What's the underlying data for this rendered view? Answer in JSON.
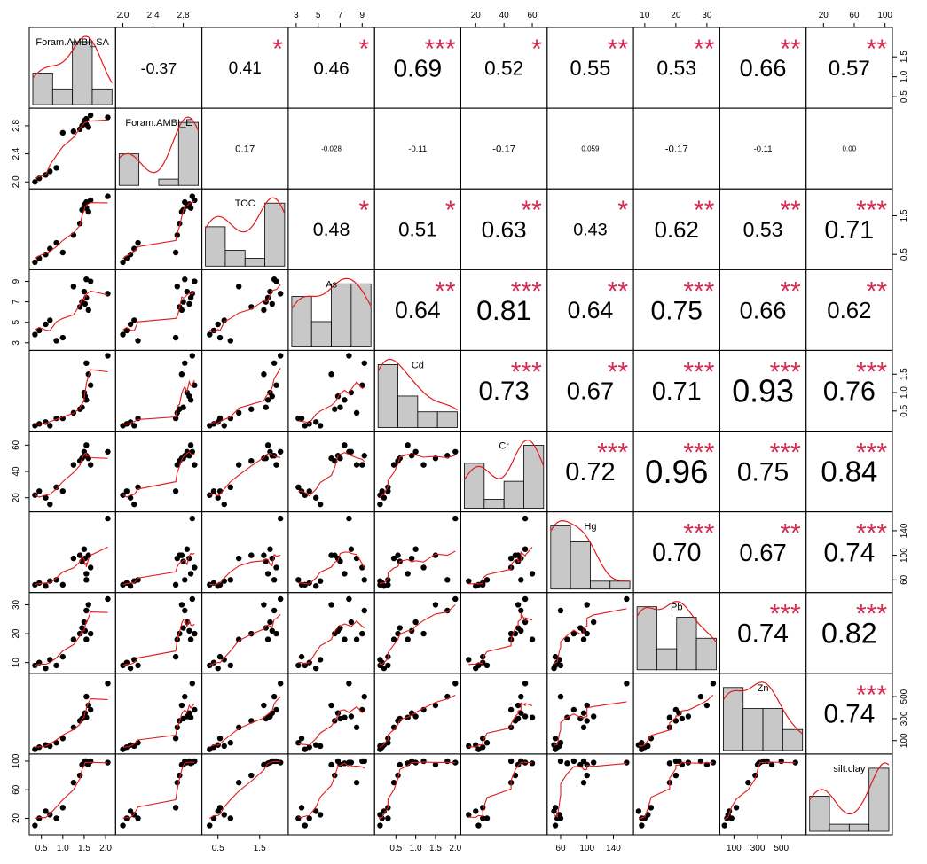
{
  "chart_data": {
    "type": "scatter",
    "title": "",
    "variables": [
      "Foram.AMBI_SA",
      "Foram.AMBI_E",
      "TOC",
      "As",
      "Cd",
      "Cr",
      "Hg",
      "Pb",
      "Zn",
      "silt.clay"
    ],
    "variable_labels": [
      "Foram.AMBI_SA",
      "Foram.AMBI_E",
      "TOC",
      "As",
      "Cd",
      "Cr",
      "Hg",
      "Pb",
      "Zn",
      "silt.clay"
    ],
    "ranges": [
      [
        0.3,
        2.15
      ],
      [
        1.95,
        3.0
      ],
      [
        0.2,
        2.1
      ],
      [
        2.6,
        9.8
      ],
      [
        0.05,
        2.05
      ],
      [
        12,
        68
      ],
      [
        45,
        165
      ],
      [
        7.5,
        33
      ],
      [
        10,
        680
      ],
      [
        2,
        105
      ]
    ],
    "tick_labels": {
      "top": [
        {
          "var": 1,
          "labels": [
            "2.0",
            "2.4",
            "2.8"
          ],
          "values": [
            2.0,
            2.4,
            2.8
          ]
        },
        {
          "var": 3,
          "labels": [
            "3",
            "5",
            "7",
            "9"
          ],
          "values": [
            3,
            5,
            7,
            9
          ]
        },
        {
          "var": 5,
          "labels": [
            "20",
            "40",
            "60"
          ],
          "values": [
            20,
            40,
            60
          ]
        },
        {
          "var": 7,
          "labels": [
            "10",
            "20",
            "30"
          ],
          "values": [
            10,
            20,
            30
          ]
        },
        {
          "var": 9,
          "labels": [
            "20",
            "60",
            "100"
          ],
          "values": [
            20,
            60,
            100
          ]
        }
      ],
      "bottom": [
        {
          "var": 0,
          "labels": [
            "0.5",
            "1.0",
            "1.5",
            "2.0"
          ],
          "values": [
            0.5,
            1.0,
            1.5,
            2.0
          ]
        },
        {
          "var": 2,
          "labels": [
            "0.5",
            "1.5"
          ],
          "values": [
            0.5,
            1.5
          ]
        },
        {
          "var": 4,
          "labels": [
            "0.5",
            "1.0",
            "1.5",
            "2.0"
          ],
          "values": [
            0.5,
            1.0,
            1.5,
            2.0
          ]
        },
        {
          "var": 6,
          "labels": [
            "60",
            "100",
            "140"
          ],
          "values": [
            60,
            100,
            140
          ]
        },
        {
          "var": 8,
          "labels": [
            "100",
            "300",
            "500"
          ],
          "values": [
            100,
            300,
            500
          ]
        }
      ],
      "left": [
        {
          "var": 1,
          "labels": [
            "2.0",
            "2.4",
            "2.8"
          ],
          "values": [
            2.0,
            2.4,
            2.8
          ]
        },
        {
          "var": 3,
          "labels": [
            "3",
            "5",
            "7",
            "9"
          ],
          "values": [
            3,
            5,
            7,
            9
          ]
        },
        {
          "var": 5,
          "labels": [
            "20",
            "40",
            "60"
          ],
          "values": [
            20,
            40,
            60
          ]
        },
        {
          "var": 7,
          "labels": [
            "10",
            "20",
            "30"
          ],
          "values": [
            10,
            20,
            30
          ]
        },
        {
          "var": 9,
          "labels": [
            "20",
            "60",
            "100"
          ],
          "values": [
            20,
            60,
            100
          ]
        }
      ],
      "right": [
        {
          "var": 0,
          "labels": [
            "0.5",
            "1.0",
            "1.5"
          ],
          "values": [
            0.5,
            1.0,
            1.5
          ]
        },
        {
          "var": 2,
          "labels": [
            "0.5",
            "1.5"
          ],
          "values": [
            0.5,
            1.5
          ]
        },
        {
          "var": 4,
          "labels": [
            "0.5",
            "1.0",
            "1.5"
          ],
          "values": [
            0.5,
            1.0,
            1.5
          ]
        },
        {
          "var": 6,
          "labels": [
            "60",
            "100",
            "140"
          ],
          "values": [
            60,
            100,
            140
          ]
        },
        {
          "var": 8,
          "labels": [
            "100",
            "300",
            "500"
          ],
          "values": [
            100,
            300,
            500
          ]
        }
      ]
    },
    "correlations": [
      {
        "row": 0,
        "col": 1,
        "r": "-0.37",
        "stars": ""
      },
      {
        "row": 0,
        "col": 2,
        "r": "0.41",
        "stars": "*"
      },
      {
        "row": 0,
        "col": 3,
        "r": "0.46",
        "stars": "*"
      },
      {
        "row": 0,
        "col": 4,
        "r": "0.69",
        "stars": "***"
      },
      {
        "row": 0,
        "col": 5,
        "r": "0.52",
        "stars": "*"
      },
      {
        "row": 0,
        "col": 6,
        "r": "0.55",
        "stars": "**"
      },
      {
        "row": 0,
        "col": 7,
        "r": "0.53",
        "stars": "**"
      },
      {
        "row": 0,
        "col": 8,
        "r": "0.66",
        "stars": "**"
      },
      {
        "row": 0,
        "col": 9,
        "r": "0.57",
        "stars": "**"
      },
      {
        "row": 1,
        "col": 2,
        "r": "0.17",
        "stars": ""
      },
      {
        "row": 1,
        "col": 3,
        "r": "-0.028",
        "stars": ""
      },
      {
        "row": 1,
        "col": 4,
        "r": "-0.11",
        "stars": ""
      },
      {
        "row": 1,
        "col": 5,
        "r": "-0.17",
        "stars": ""
      },
      {
        "row": 1,
        "col": 6,
        "r": "0.059",
        "stars": ""
      },
      {
        "row": 1,
        "col": 7,
        "r": "-0.17",
        "stars": ""
      },
      {
        "row": 1,
        "col": 8,
        "r": "-0.11",
        "stars": ""
      },
      {
        "row": 1,
        "col": 9,
        "r": "0.00",
        "stars": ""
      },
      {
        "row": 2,
        "col": 3,
        "r": "0.48",
        "stars": "*"
      },
      {
        "row": 2,
        "col": 4,
        "r": "0.51",
        "stars": "*"
      },
      {
        "row": 2,
        "col": 5,
        "r": "0.63",
        "stars": "**"
      },
      {
        "row": 2,
        "col": 6,
        "r": "0.43",
        "stars": "*"
      },
      {
        "row": 2,
        "col": 7,
        "r": "0.62",
        "stars": "**"
      },
      {
        "row": 2,
        "col": 8,
        "r": "0.53",
        "stars": "**"
      },
      {
        "row": 2,
        "col": 9,
        "r": "0.71",
        "stars": "***"
      },
      {
        "row": 3,
        "col": 4,
        "r": "0.64",
        "stars": "**"
      },
      {
        "row": 3,
        "col": 5,
        "r": "0.81",
        "stars": "***"
      },
      {
        "row": 3,
        "col": 6,
        "r": "0.64",
        "stars": "**"
      },
      {
        "row": 3,
        "col": 7,
        "r": "0.75",
        "stars": "***"
      },
      {
        "row": 3,
        "col": 8,
        "r": "0.66",
        "stars": "**"
      },
      {
        "row": 3,
        "col": 9,
        "r": "0.62",
        "stars": "**"
      },
      {
        "row": 4,
        "col": 5,
        "r": "0.73",
        "stars": "***"
      },
      {
        "row": 4,
        "col": 6,
        "r": "0.67",
        "stars": "**"
      },
      {
        "row": 4,
        "col": 7,
        "r": "0.71",
        "stars": "***"
      },
      {
        "row": 4,
        "col": 8,
        "r": "0.93",
        "stars": "***"
      },
      {
        "row": 4,
        "col": 9,
        "r": "0.76",
        "stars": "***"
      },
      {
        "row": 5,
        "col": 6,
        "r": "0.72",
        "stars": "***"
      },
      {
        "row": 5,
        "col": 7,
        "r": "0.96",
        "stars": "***"
      },
      {
        "row": 5,
        "col": 8,
        "r": "0.75",
        "stars": "***"
      },
      {
        "row": 5,
        "col": 9,
        "r": "0.84",
        "stars": "***"
      },
      {
        "row": 6,
        "col": 7,
        "r": "0.70",
        "stars": "***"
      },
      {
        "row": 6,
        "col": 8,
        "r": "0.67",
        "stars": "**"
      },
      {
        "row": 6,
        "col": 9,
        "r": "0.74",
        "stars": "***"
      },
      {
        "row": 7,
        "col": 8,
        "r": "0.74",
        "stars": "***"
      },
      {
        "row": 7,
        "col": 9,
        "r": "0.82",
        "stars": "***"
      },
      {
        "row": 8,
        "col": 9,
        "r": "0.74",
        "stars": "***"
      }
    ],
    "samples": [
      [
        0.35,
        2.0,
        0.3,
        3.8,
        0.1,
        22,
        52,
        9,
        20,
        10
      ],
      [
        0.45,
        2.05,
        0.4,
        4.2,
        0.15,
        25,
        55,
        10,
        40,
        20
      ],
      [
        0.6,
        2.1,
        0.5,
        4.8,
        0.2,
        20,
        50,
        8,
        60,
        30
      ],
      [
        0.7,
        2.15,
        0.65,
        5.2,
        0.1,
        15,
        58,
        11,
        50,
        25
      ],
      [
        0.85,
        2.2,
        0.8,
        3.2,
        0.3,
        28,
        60,
        9,
        80,
        20
      ],
      [
        1.0,
        2.7,
        0.55,
        3.5,
        0.3,
        25,
        52,
        12,
        120,
        35
      ],
      [
        1.25,
        2.72,
        1.0,
        8.5,
        0.45,
        45,
        95,
        18,
        220,
        70
      ],
      [
        1.4,
        2.75,
        1.3,
        6.5,
        0.55,
        48,
        100,
        20,
        280,
        80
      ],
      [
        1.45,
        2.8,
        1.65,
        7.0,
        0.6,
        50,
        90,
        22,
        300,
        95
      ],
      [
        1.5,
        2.85,
        1.75,
        8.0,
        1.0,
        55,
        110,
        24,
        320,
        98
      ],
      [
        1.52,
        2.88,
        1.8,
        6.8,
        0.9,
        52,
        95,
        21,
        350,
        100
      ],
      [
        1.55,
        2.9,
        1.7,
        7.4,
        0.8,
        60,
        70,
        18,
        310,
        97
      ],
      [
        1.55,
        2.82,
        1.85,
        9.2,
        1.8,
        52,
        60,
        28,
        500,
        100
      ],
      [
        1.6,
        2.78,
        1.6,
        6.2,
        1.5,
        50,
        100,
        30,
        420,
        95
      ],
      [
        1.65,
        2.95,
        1.9,
        9.0,
        1.2,
        45,
        80,
        20,
        380,
        100
      ],
      [
        2.05,
        2.92,
        2.0,
        7.8,
        2.0,
        55,
        160,
        32,
        620,
        98
      ]
    ],
    "smooth_color": "#e31a1c",
    "star_color": "#d62c52",
    "hist_fill": "#c8c8c8"
  }
}
